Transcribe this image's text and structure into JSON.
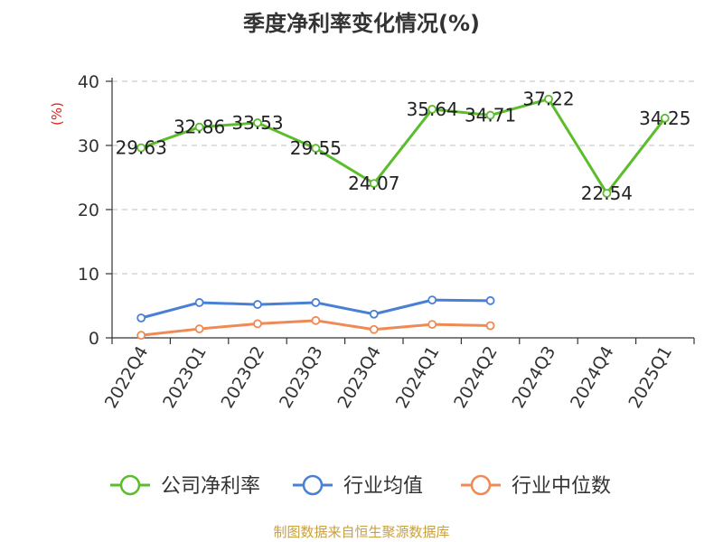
{
  "chart_data": {
    "type": "line",
    "title": "季度净利率变化情况(%)",
    "ylabel": "(%)",
    "xlabel": "",
    "categories": [
      "2022Q4",
      "2023Q1",
      "2023Q2",
      "2023Q3",
      "2023Q4",
      "2024Q1",
      "2024Q2",
      "2024Q3",
      "2024Q4",
      "2025Q1"
    ],
    "ylim": [
      0,
      40
    ],
    "yticks": [
      0,
      10,
      20,
      30,
      40
    ],
    "grid": true,
    "legend_position": "bottom",
    "series": [
      {
        "name": "公司净利率",
        "color": "#5bbd2b",
        "values": [
          29.63,
          32.86,
          33.53,
          29.55,
          24.07,
          35.64,
          34.71,
          37.22,
          22.54,
          34.25
        ],
        "labels": [
          "29.63",
          "32.86",
          "33.53",
          "29.55",
          "24.07",
          "35.64",
          "34.71",
          "37.22",
          "22.54",
          "34.25"
        ],
        "show_labels": true
      },
      {
        "name": "行业均值",
        "color": "#4a7fd6",
        "values": [
          3.1,
          5.5,
          5.2,
          5.5,
          3.7,
          5.9,
          5.8,
          null,
          null,
          null
        ],
        "show_labels": false
      },
      {
        "name": "行业中位数",
        "color": "#f08a55",
        "values": [
          0.4,
          1.4,
          2.2,
          2.7,
          1.3,
          2.1,
          1.9,
          null,
          null,
          null
        ],
        "show_labels": false
      }
    ]
  },
  "source": "制图数据来自恒生聚源数据库",
  "colors": {
    "title": "#333333",
    "axis_text": "#333333",
    "ylabel": "#e02020",
    "grid": "#cccccc",
    "source": "#c8a040"
  }
}
